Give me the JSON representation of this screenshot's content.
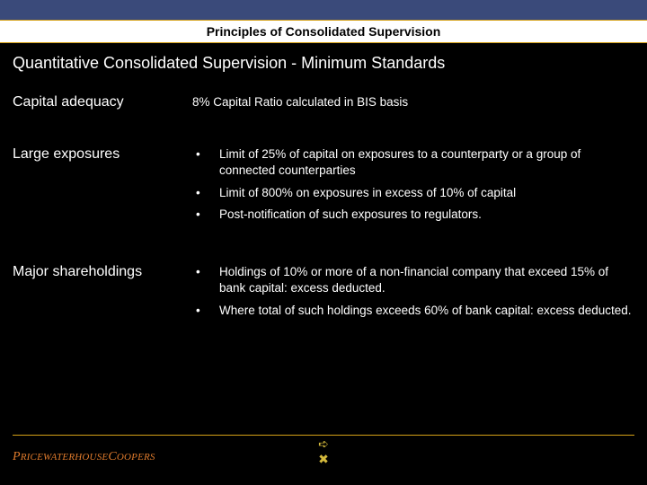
{
  "header": {
    "title": "Principles of Consolidated Supervision"
  },
  "subtitle": "Quantitative Consolidated Supervision - Minimum Standards",
  "sections": [
    {
      "label": "Capital adequacy",
      "plain": "8% Capital Ratio calculated in BIS basis"
    },
    {
      "label": "Large exposures",
      "bullets": [
        "Limit of 25% of capital on exposures to a counterparty or a group of connected counterparties",
        "Limit of 800% on exposures in excess of 10% of capital",
        "Post-notification of such exposures to regulators."
      ]
    },
    {
      "label": "Major shareholdings",
      "bullets": [
        "Holdings of 10% or more of a non-financial company that exceed 15% of bank capital: excess deducted.",
        "Where total of such holdings exceeds 60% of bank capital: excess deducted."
      ]
    }
  ],
  "footer": {
    "logo": "PricewaterhouseCoopers",
    "nav_forward": "➪",
    "nav_close": "✖"
  },
  "colors": {
    "top_bar": "#3a4a7a",
    "accent": "#d4a017",
    "logo_color": "#e07b2c",
    "nav_color": "#d4b93c",
    "background": "#000000",
    "text": "#ffffff"
  }
}
